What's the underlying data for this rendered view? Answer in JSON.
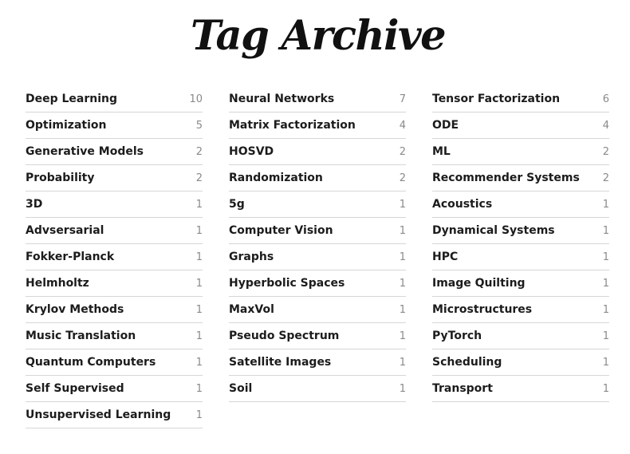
{
  "title": "Tag Archive",
  "columns": [
    [
      {
        "name": "Deep Learning",
        "count": "10"
      },
      {
        "name": "Optimization",
        "count": "5"
      },
      {
        "name": "Generative Models",
        "count": "2"
      },
      {
        "name": "Probability",
        "count": "2"
      },
      {
        "name": "3D",
        "count": "1"
      },
      {
        "name": "Advsersarial",
        "count": "1"
      },
      {
        "name": "Fokker-Planck",
        "count": "1"
      },
      {
        "name": "Helmholtz",
        "count": "1"
      },
      {
        "name": "Krylov Methods",
        "count": "1"
      },
      {
        "name": "Music Translation",
        "count": "1"
      },
      {
        "name": "Quantum Computers",
        "count": "1"
      },
      {
        "name": "Self Supervised",
        "count": "1"
      },
      {
        "name": "Unsupervised Learning",
        "count": "1"
      }
    ],
    [
      {
        "name": "Neural Networks",
        "count": "7"
      },
      {
        "name": "Matrix Factorization",
        "count": "4"
      },
      {
        "name": "HOSVD",
        "count": "2"
      },
      {
        "name": "Randomization",
        "count": "2"
      },
      {
        "name": "5g",
        "count": "1"
      },
      {
        "name": "Computer Vision",
        "count": "1"
      },
      {
        "name": "Graphs",
        "count": "1"
      },
      {
        "name": "Hyperbolic Spaces",
        "count": "1"
      },
      {
        "name": "MaxVol",
        "count": "1"
      },
      {
        "name": "Pseudo Spectrum",
        "count": "1"
      },
      {
        "name": "Satellite Images",
        "count": "1"
      },
      {
        "name": "Soil",
        "count": "1"
      }
    ],
    [
      {
        "name": "Tensor Factorization",
        "count": "6"
      },
      {
        "name": "ODE",
        "count": "4"
      },
      {
        "name": "ML",
        "count": "2"
      },
      {
        "name": "Recommender Systems",
        "count": "2"
      },
      {
        "name": "Acoustics",
        "count": "1"
      },
      {
        "name": "Dynamical Systems",
        "count": "1"
      },
      {
        "name": "HPC",
        "count": "1"
      },
      {
        "name": "Image Quilting",
        "count": "1"
      },
      {
        "name": "Microstructures",
        "count": "1"
      },
      {
        "name": "PyTorch",
        "count": "1"
      },
      {
        "name": "Scheduling",
        "count": "1"
      },
      {
        "name": "Transport",
        "count": "1"
      }
    ]
  ]
}
